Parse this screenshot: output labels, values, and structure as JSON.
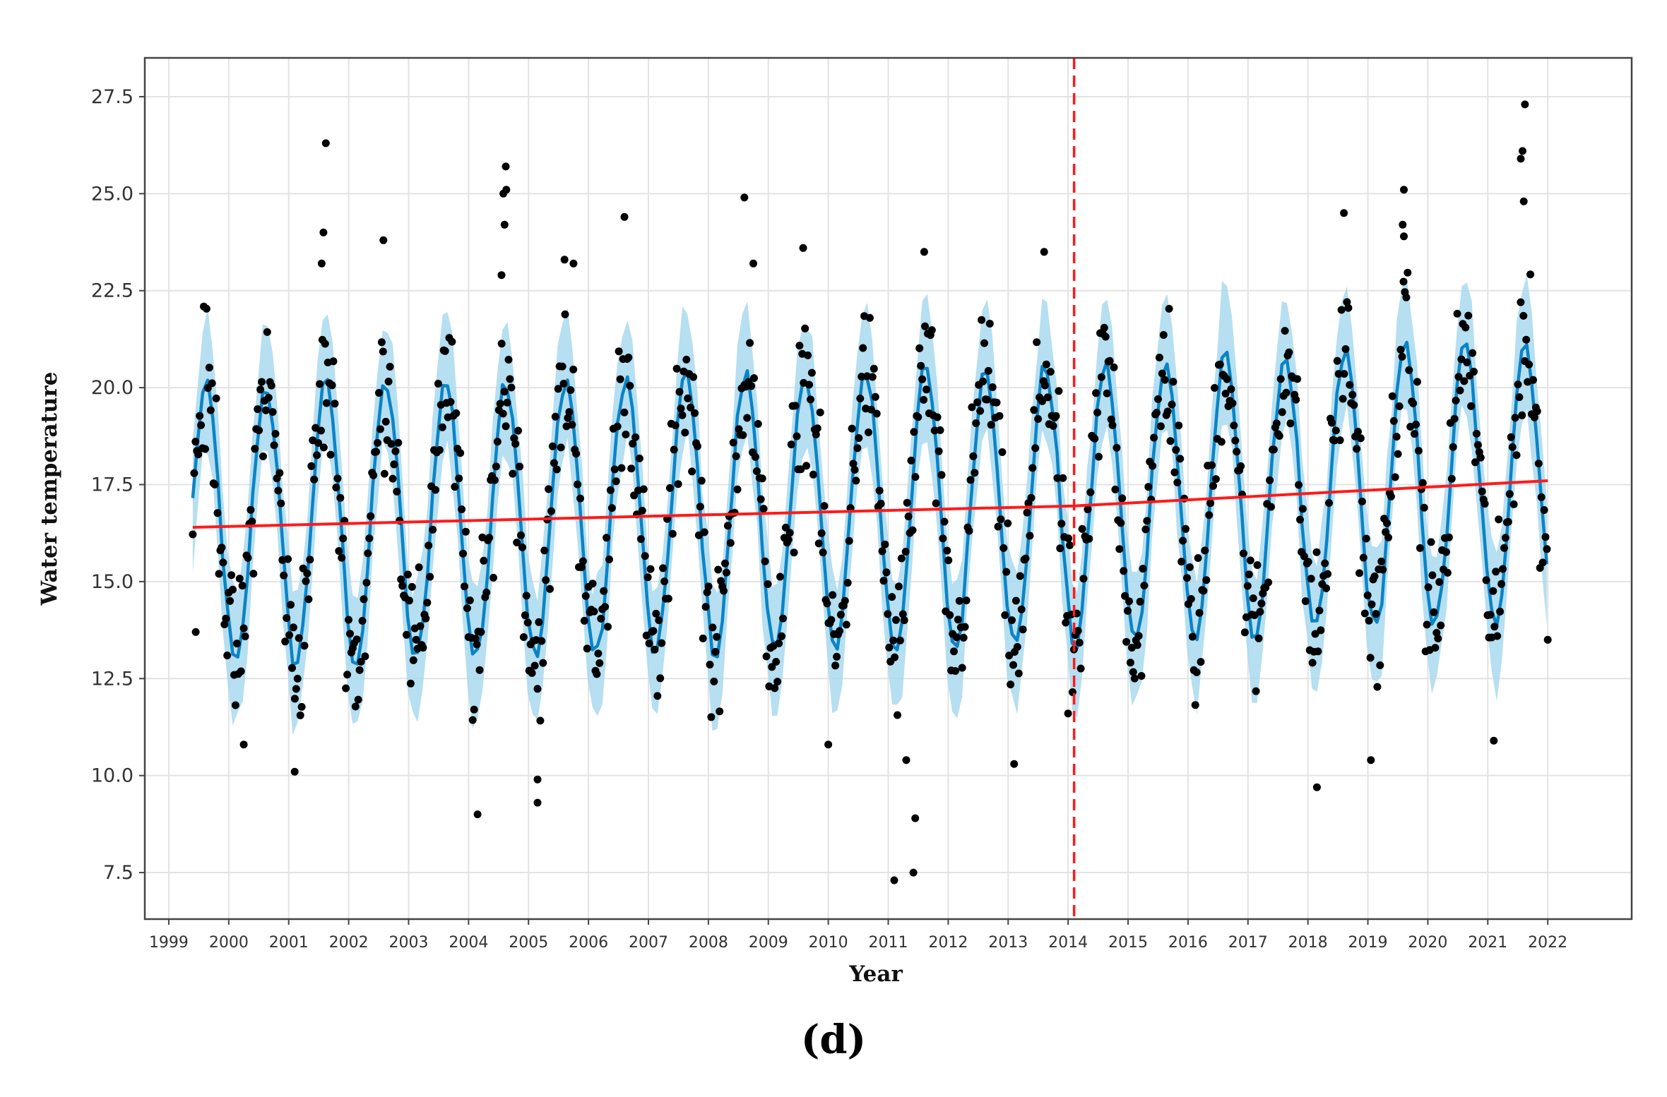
{
  "chart_data": {
    "type": "line",
    "panel_label": "(d)",
    "xlabel": "Year",
    "ylabel": "Water temperature",
    "xlim": [
      1998.6,
      2023.4
    ],
    "ylim": [
      6.3,
      28.5
    ],
    "x_ticks": [
      "1999",
      "2000",
      "2001",
      "2002",
      "2003",
      "2004",
      "2005",
      "2006",
      "2007",
      "2008",
      "2009",
      "2010",
      "2011",
      "2012",
      "2013",
      "2014",
      "2015",
      "2016",
      "2017",
      "2018",
      "2019",
      "2020",
      "2021",
      "2022"
    ],
    "y_ticks": [
      "7.5",
      "10.0",
      "12.5",
      "15.0",
      "17.5",
      "20.0",
      "22.5",
      "25.0",
      "27.5"
    ],
    "grid": true,
    "colors": {
      "observed": "#000000",
      "fit": "#0a84c6",
      "band": "#a9d9ef",
      "trend": "#ff1a1a",
      "changepoint": "#ff1a1a",
      "frame": "#444444",
      "grid": "#e3e3e3"
    },
    "fit": {
      "start_year": 1999.4,
      "end_year": 2022.0,
      "seasonal_amplitude": 3.6,
      "peak_phase": 0.62,
      "band_halfwidth": 1.7
    },
    "trend": {
      "x": [
        1999.4,
        2014.1,
        2022.0
      ],
      "y": [
        16.4,
        16.95,
        17.6
      ]
    },
    "changepoint_year": 2014.1,
    "outliers": [
      {
        "x": 2001.62,
        "y": 26.3
      },
      {
        "x": 2001.58,
        "y": 24.0
      },
      {
        "x": 2001.55,
        "y": 23.2
      },
      {
        "x": 2002.58,
        "y": 23.8
      },
      {
        "x": 2004.62,
        "y": 25.7
      },
      {
        "x": 2004.58,
        "y": 25.0
      },
      {
        "x": 2004.63,
        "y": 25.1
      },
      {
        "x": 2004.6,
        "y": 24.2
      },
      {
        "x": 2004.55,
        "y": 22.9
      },
      {
        "x": 2005.6,
        "y": 23.3
      },
      {
        "x": 2005.75,
        "y": 23.2
      },
      {
        "x": 2006.6,
        "y": 24.4
      },
      {
        "x": 2008.6,
        "y": 24.9
      },
      {
        "x": 2008.75,
        "y": 23.2
      },
      {
        "x": 2009.58,
        "y": 23.6
      },
      {
        "x": 2011.6,
        "y": 23.5
      },
      {
        "x": 2013.6,
        "y": 23.5
      },
      {
        "x": 2018.6,
        "y": 24.5
      },
      {
        "x": 2019.6,
        "y": 25.1
      },
      {
        "x": 2019.58,
        "y": 24.2
      },
      {
        "x": 2019.6,
        "y": 23.9
      },
      {
        "x": 2021.62,
        "y": 27.3
      },
      {
        "x": 2021.58,
        "y": 26.1
      },
      {
        "x": 2021.55,
        "y": 25.9
      },
      {
        "x": 2021.6,
        "y": 24.8
      },
      {
        "x": 2001.1,
        "y": 10.1
      },
      {
        "x": 2004.15,
        "y": 9.0
      },
      {
        "x": 2005.15,
        "y": 9.9
      },
      {
        "x": 2005.15,
        "y": 9.3
      },
      {
        "x": 2011.1,
        "y": 7.3
      },
      {
        "x": 2011.42,
        "y": 7.5
      },
      {
        "x": 2011.45,
        "y": 8.9
      },
      {
        "x": 2011.3,
        "y": 10.4
      },
      {
        "x": 2013.1,
        "y": 10.3
      },
      {
        "x": 2018.15,
        "y": 9.7
      },
      {
        "x": 2019.05,
        "y": 10.4
      },
      {
        "x": 1999.45,
        "y": 13.7
      },
      {
        "x": 2022.0,
        "y": 13.5
      },
      {
        "x": 2000.25,
        "y": 10.8
      },
      {
        "x": 2010.0,
        "y": 10.8
      },
      {
        "x": 2014.0,
        "y": 11.6
      },
      {
        "x": 2021.1,
        "y": 10.9
      }
    ]
  }
}
